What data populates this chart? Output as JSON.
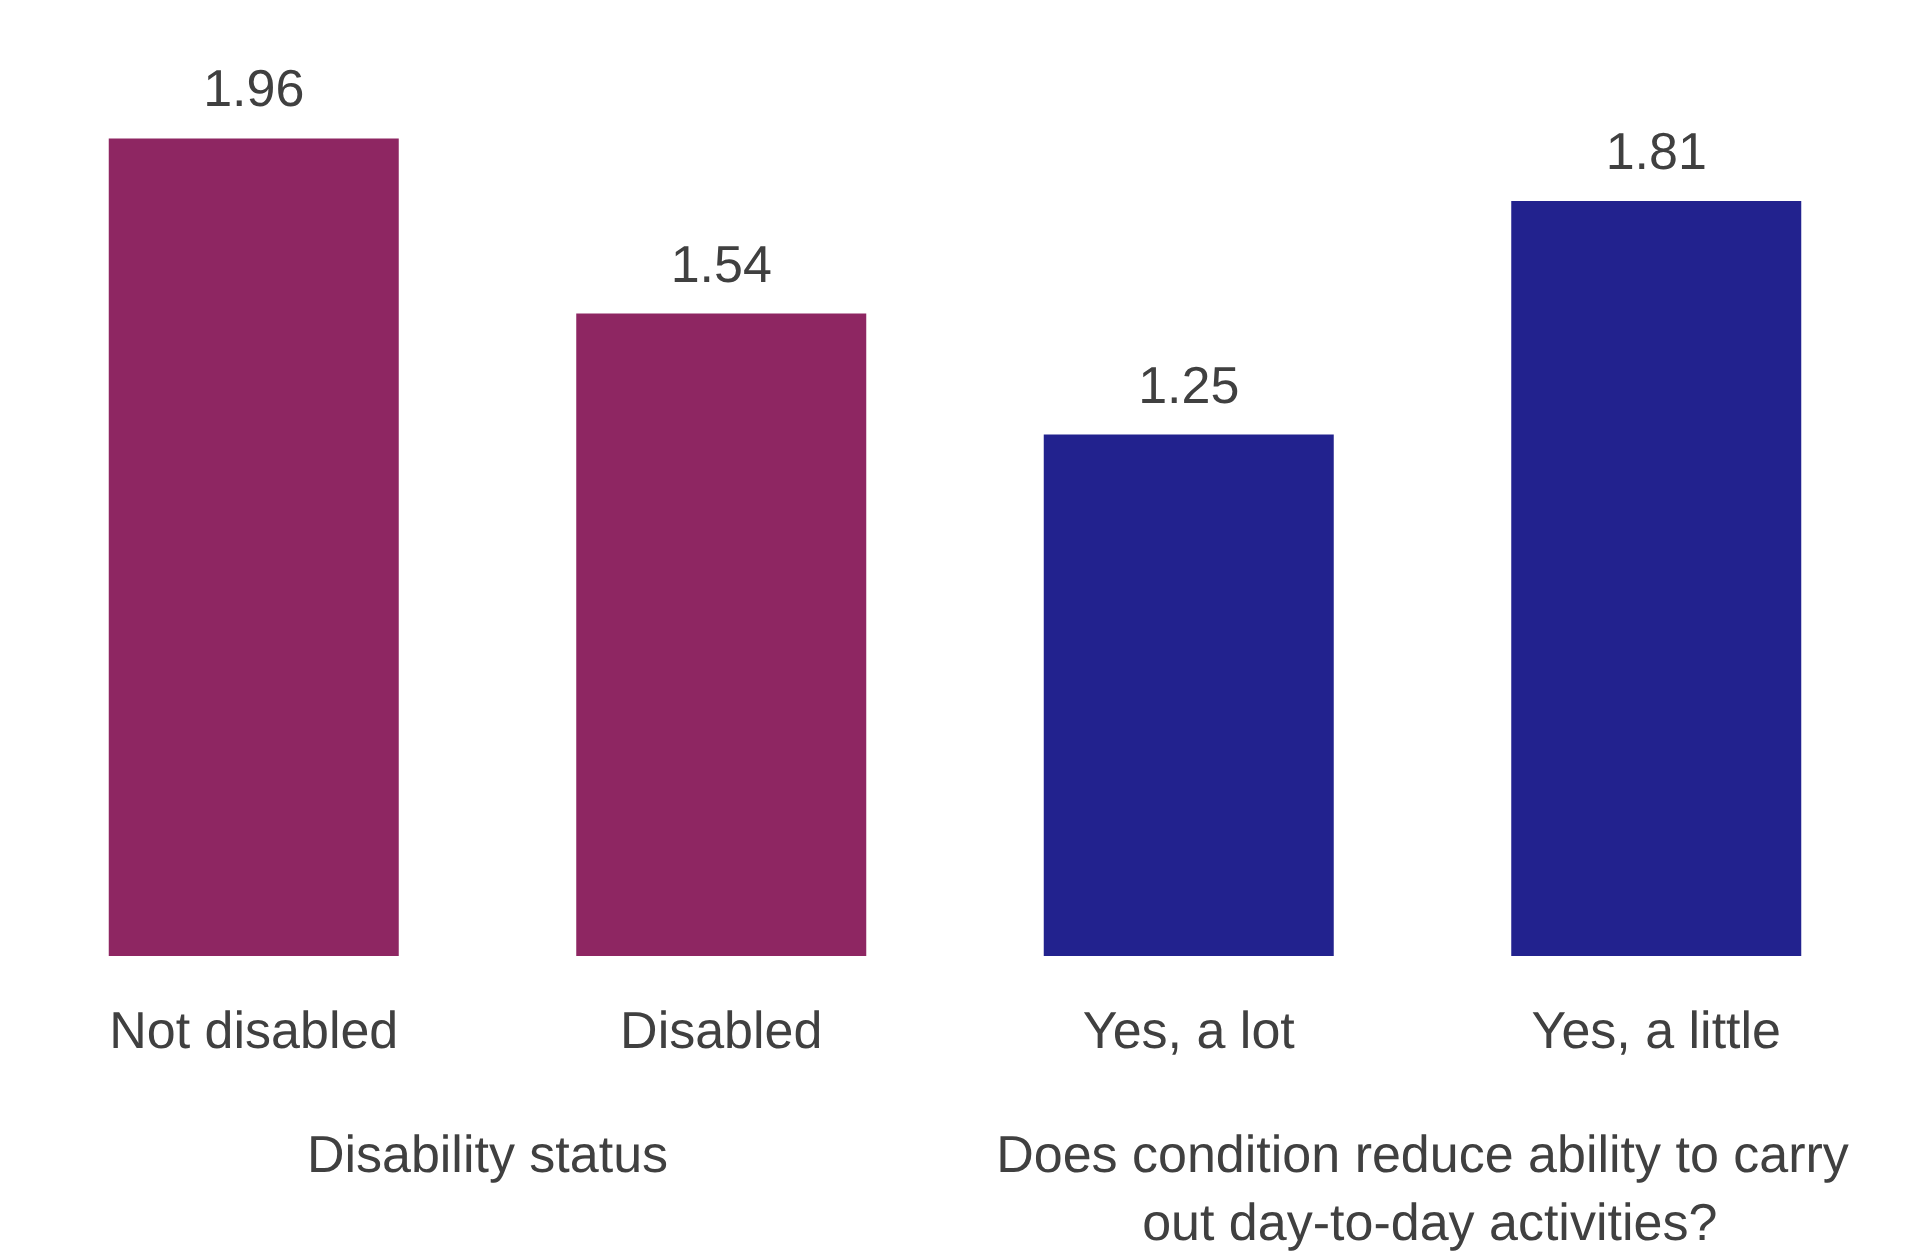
{
  "chart_data": {
    "type": "bar",
    "categories": [
      "Not disabled",
      "Disabled",
      "Yes, a lot",
      "Yes, a little"
    ],
    "values": [
      1.96,
      1.54,
      1.25,
      1.81
    ],
    "colors": [
      "#8e2662",
      "#8e2662",
      "#22228e",
      "#22228e"
    ],
    "data_labels": true,
    "annotations": [
      "Disability status",
      "Does condition reduce ability to carry out day-to-day activities?"
    ]
  }
}
